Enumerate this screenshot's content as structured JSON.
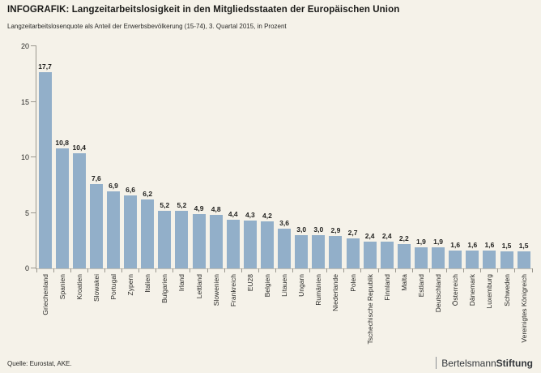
{
  "header": {
    "title": "INFOGRAFIK: Langzeitarbeitslosigkeit in den Mitgliedsstaaten der Europäischen Union",
    "subtitle": "Langzeitarbeitslosenquote als Anteil der Erwerbsbevölkerung (15-74), 3. Quartal 2015, in Prozent"
  },
  "footer": {
    "source": "Quelle: Eurostat, AKE.",
    "logo_prefix": "Bertelsmann",
    "logo_suffix": "Stiftung"
  },
  "colors": {
    "background": "#f5f2e9",
    "bar": "#92afc9",
    "axis": "#9a978e",
    "text": "#1d1d1b"
  },
  "chart_data": {
    "type": "bar",
    "title": "INFOGRAFIK: Langzeitarbeitslosigkeit in den Mitgliedsstaaten der Europäischen Union",
    "subtitle": "Langzeitarbeitslosenquote als Anteil der Erwerbsbevölkerung (15-74), 3. Quartal 2015, in Prozent",
    "xlabel": "",
    "ylabel": "",
    "ylim": [
      0,
      20
    ],
    "yticks": [
      0,
      5,
      10,
      15,
      20
    ],
    "grid": false,
    "legend": "none",
    "bar_color": "#92afc9",
    "categories": [
      "Griechenland",
      "Spanien",
      "Kroatien",
      "Slowakei",
      "Portugal",
      "Zypern",
      "Italien",
      "Bulgarien",
      "Irland",
      "Lettland",
      "Slowenien",
      "Frankreich",
      "EU28",
      "Belgien",
      "Litauen",
      "Ungarn",
      "Rumänien",
      "Niederlande",
      "Polen",
      "Tschechische Republik",
      "Finnland",
      "Malta",
      "Estland",
      "Deutschland",
      "Österreich",
      "Dänemark",
      "Luxemburg",
      "Schweden",
      "Vereinigtes Königreich"
    ],
    "values": [
      17.7,
      10.8,
      10.4,
      7.6,
      6.9,
      6.6,
      6.2,
      5.2,
      5.2,
      4.9,
      4.8,
      4.4,
      4.3,
      4.2,
      3.6,
      3.0,
      3.0,
      2.9,
      2.7,
      2.4,
      2.4,
      2.2,
      1.9,
      1.9,
      1.6,
      1.6,
      1.6,
      1.5,
      1.5
    ],
    "value_labels": [
      "17,7",
      "10,8",
      "10,4",
      "7,6",
      "6,9",
      "6,6",
      "6,2",
      "5,2",
      "5,2",
      "4,9",
      "4,8",
      "4,4",
      "4,3",
      "4,2",
      "3,6",
      "3,0",
      "3,0",
      "2,9",
      "2,7",
      "2,4",
      "2,4",
      "2,2",
      "1,9",
      "1,9",
      "1,6",
      "1,6",
      "1,6",
      "1,5",
      "1,5"
    ]
  }
}
